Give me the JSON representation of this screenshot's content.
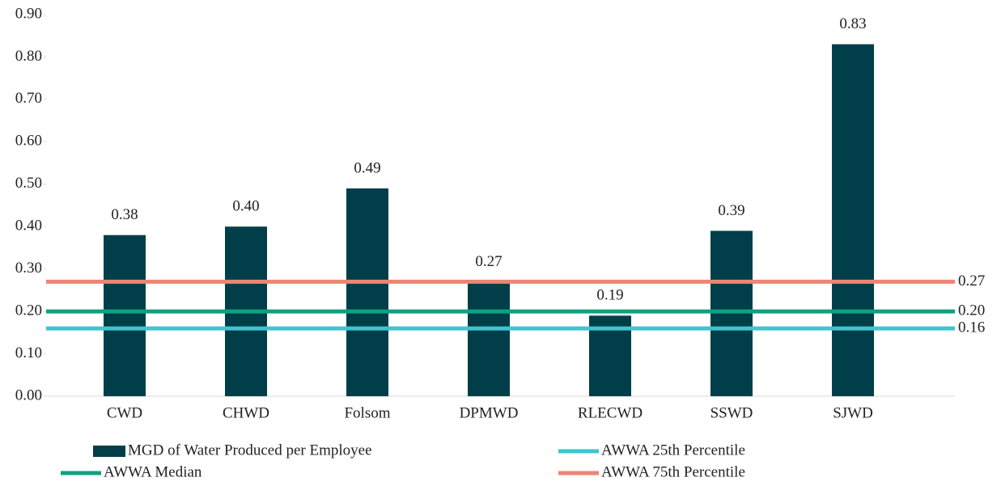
{
  "chart_data": {
    "type": "bar",
    "categories": [
      "CWD",
      "CHWD",
      "Folsom",
      "DPMWD",
      "RLECWD",
      "SSWD",
      "SJWD"
    ],
    "series": [
      {
        "name": "MGD of Water Produced per Employee",
        "color": "#003f4a",
        "values": [
          0.38,
          0.4,
          0.49,
          0.27,
          0.19,
          0.39,
          0.83
        ],
        "value_labels": [
          "0.38",
          "0.40",
          "0.49",
          "0.27",
          "0.19",
          "0.39",
          "0.83"
        ]
      }
    ],
    "reference_lines": [
      {
        "name": "AWWA 25th Percentile",
        "color": "#3fc5cf",
        "value": 0.16,
        "value_label": "0.16"
      },
      {
        "name": "AWWA Median",
        "color": "#12a07f",
        "value": 0.2,
        "value_label": "0.20"
      },
      {
        "name": "AWWA 75th Percentile",
        "color": "#ee8476",
        "value": 0.27,
        "value_label": "0.27"
      }
    ],
    "ylim": [
      0,
      0.9
    ],
    "yticks": [
      {
        "value": 0,
        "label": "0.00"
      },
      {
        "value": 0.1,
        "label": "0.10"
      },
      {
        "value": 0.2,
        "label": "0.20"
      },
      {
        "value": 0.3,
        "label": "0.30"
      },
      {
        "value": 0.4,
        "label": "0.40"
      },
      {
        "value": 0.5,
        "label": "0.50"
      },
      {
        "value": 0.6,
        "label": "0.60"
      },
      {
        "value": 0.7,
        "label": "0.70"
      },
      {
        "value": 0.8,
        "label": "0.80"
      },
      {
        "value": 0.9,
        "label": "0.90"
      }
    ]
  }
}
